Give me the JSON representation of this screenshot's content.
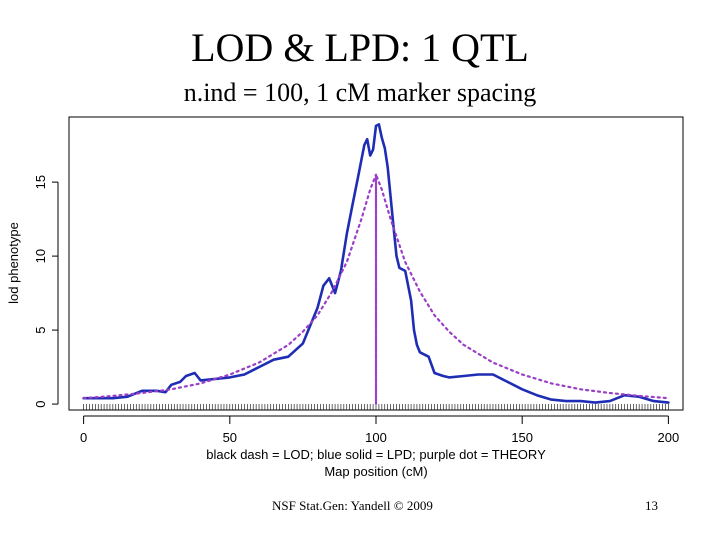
{
  "slide": {
    "title": "LOD & LPD: 1 QTL",
    "subtitle": "n.ind = 100, 1 cM marker spacing",
    "footer": "NSF Stat.Gen: Yandell © 2009",
    "page_number": "13"
  },
  "chart_data": {
    "type": "line",
    "ylabel": "lod phenotype",
    "xlabel": "Map position (cM)",
    "xlabel_line1": "black dash = LOD; blue solid = LPD; purple dot = THEORY",
    "xlim": [
      -5,
      205
    ],
    "ylim": [
      -0.4,
      19.4
    ],
    "x_ticks": [
      0,
      50,
      100,
      150,
      200
    ],
    "y_ticks": [
      0,
      5,
      10,
      15
    ],
    "grid": false,
    "colors": {
      "lod": "#111111",
      "lpd": "#1f2db5",
      "theory": "#9a3fc7"
    },
    "series": [
      {
        "key": "lod",
        "x": [
          0,
          5,
          10,
          15,
          20,
          25,
          28,
          30,
          33,
          35,
          38,
          40,
          45,
          50,
          55,
          60,
          65,
          70,
          75,
          80,
          82,
          84,
          86,
          88,
          90,
          92,
          94,
          95,
          96,
          97,
          98,
          99,
          100,
          101,
          102,
          103,
          104,
          105,
          106,
          107,
          108,
          110,
          112,
          113,
          114,
          115,
          118,
          120,
          123,
          125,
          130,
          135,
          140,
          145,
          150,
          155,
          160,
          165,
          170,
          175,
          180,
          185,
          190,
          195,
          200
        ],
        "y": [
          0.4,
          0.4,
          0.4,
          0.5,
          0.9,
          0.9,
          0.8,
          1.3,
          1.5,
          1.9,
          2.1,
          1.6,
          1.7,
          1.8,
          2.0,
          2.5,
          3.0,
          3.2,
          4.1,
          6.5,
          8.0,
          8.5,
          7.5,
          9.0,
          11.5,
          13.5,
          15.5,
          16.5,
          17.5,
          17.9,
          16.8,
          17.2,
          18.8,
          18.9,
          18.0,
          17.3,
          16.0,
          14.0,
          12.0,
          10.0,
          9.2,
          9.0,
          7.0,
          5.0,
          4.0,
          3.5,
          3.2,
          2.1,
          1.9,
          1.8,
          1.9,
          2.0,
          2.0,
          1.5,
          1.0,
          0.6,
          0.3,
          0.2,
          0.2,
          0.1,
          0.2,
          0.6,
          0.5,
          0.2,
          0.1
        ]
      },
      {
        "key": "lpd",
        "x": [
          0,
          5,
          10,
          15,
          20,
          25,
          28,
          30,
          33,
          35,
          38,
          40,
          45,
          50,
          55,
          60,
          65,
          70,
          75,
          80,
          82,
          84,
          86,
          88,
          90,
          92,
          94,
          95,
          96,
          97,
          98,
          99,
          100,
          101,
          102,
          103,
          104,
          105,
          106,
          107,
          108,
          110,
          112,
          113,
          114,
          115,
          118,
          120,
          123,
          125,
          130,
          135,
          140,
          145,
          150,
          155,
          160,
          165,
          170,
          175,
          180,
          185,
          190,
          195,
          200
        ],
        "y": [
          0.4,
          0.4,
          0.4,
          0.5,
          0.9,
          0.9,
          0.8,
          1.3,
          1.5,
          1.9,
          2.1,
          1.6,
          1.7,
          1.8,
          2.0,
          2.5,
          3.0,
          3.2,
          4.1,
          6.5,
          8.0,
          8.5,
          7.5,
          9.0,
          11.5,
          13.5,
          15.5,
          16.5,
          17.5,
          17.9,
          16.8,
          17.2,
          18.8,
          18.9,
          18.0,
          17.3,
          16.0,
          14.0,
          12.0,
          10.0,
          9.2,
          9.0,
          7.0,
          5.0,
          4.0,
          3.5,
          3.2,
          2.1,
          1.9,
          1.8,
          1.9,
          2.0,
          2.0,
          1.5,
          1.0,
          0.6,
          0.3,
          0.2,
          0.2,
          0.1,
          0.2,
          0.6,
          0.5,
          0.2,
          0.1
        ]
      },
      {
        "key": "theory",
        "x": [
          0,
          10,
          20,
          30,
          40,
          50,
          60,
          70,
          75,
          80,
          85,
          90,
          95,
          98,
          100,
          100,
          100,
          102,
          105,
          110,
          115,
          120,
          125,
          130,
          140,
          150,
          160,
          170,
          180,
          190,
          200
        ],
        "y": [
          0.4,
          0.55,
          0.75,
          1.0,
          1.4,
          2.0,
          2.8,
          4.0,
          4.9,
          6.0,
          7.6,
          9.6,
          12.5,
          14.5,
          15.5,
          0,
          15.5,
          14.5,
          12.5,
          9.6,
          7.6,
          6.0,
          4.9,
          4.0,
          2.8,
          2.0,
          1.4,
          1.0,
          0.75,
          0.55,
          0.4
        ]
      }
    ]
  }
}
